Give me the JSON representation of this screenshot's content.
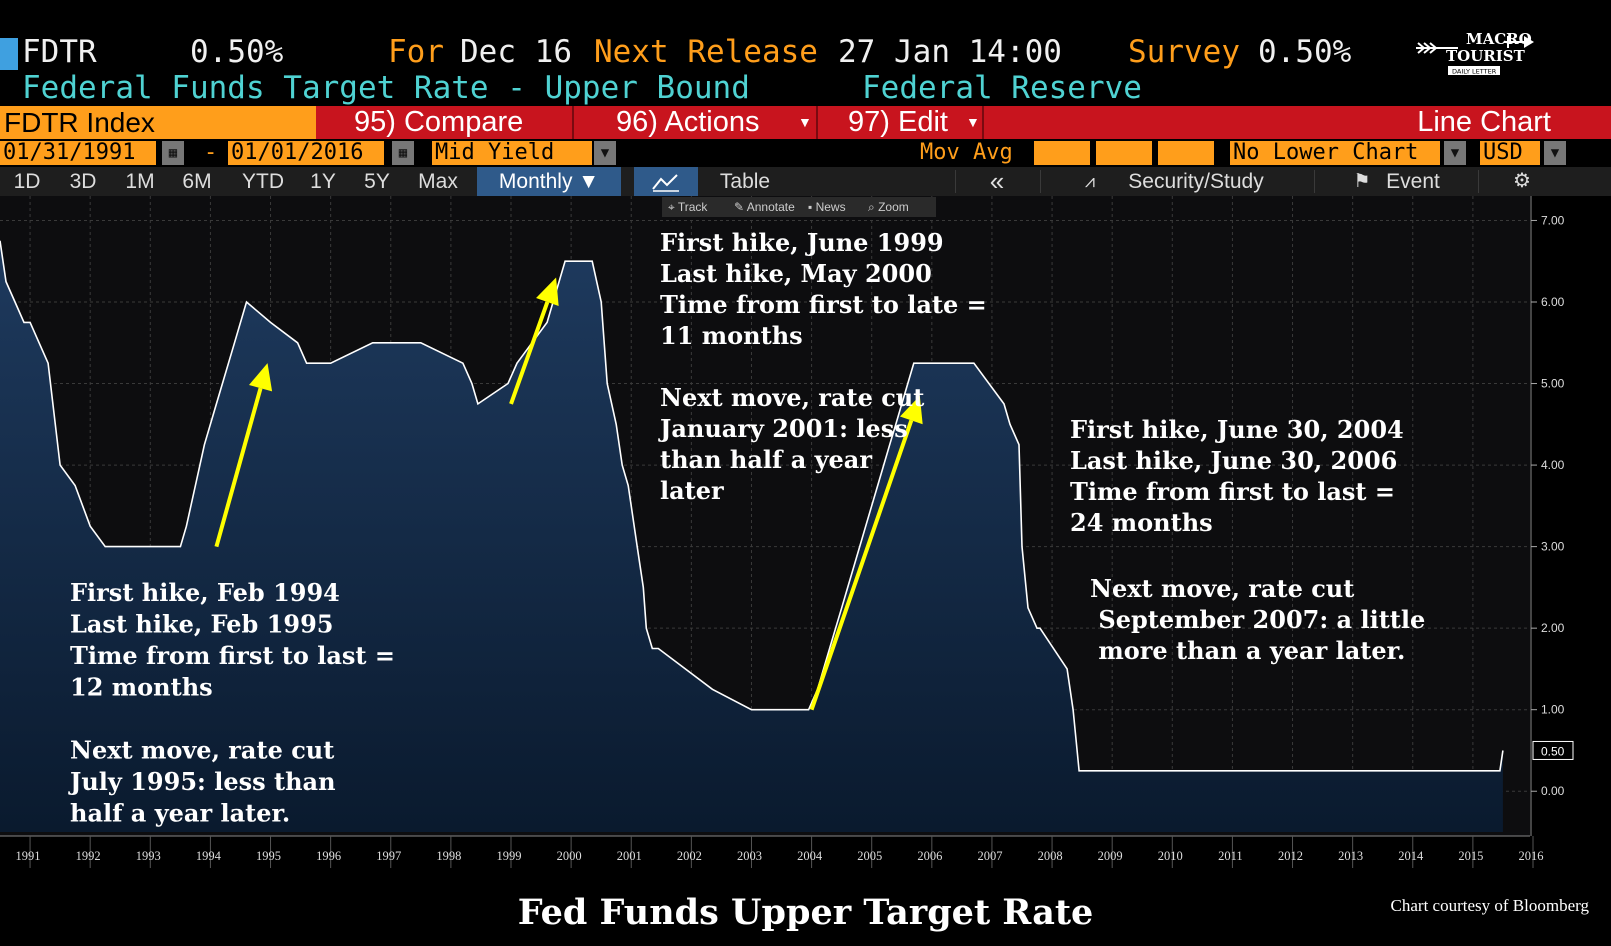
{
  "header": {
    "ticker": "FDTR",
    "value": "0.50%",
    "for_label": "For",
    "for_date": "Dec 16",
    "next_release_label": "Next Release",
    "next_release": "27 Jan 14:00",
    "survey_label": "Survey",
    "survey_value": "0.50%",
    "description": "Federal Funds Target Rate - Upper Bound",
    "source": "Federal Reserve"
  },
  "logo": {
    "line1": "MACRO",
    "line2": "TOURIST",
    "line3": "DAILY LETTER"
  },
  "toolbar": {
    "index": "FDTR Index",
    "compare": "95) Compare",
    "actions": "96) Actions",
    "edit": "97) Edit",
    "chart_type": "Line Chart"
  },
  "datebar": {
    "start": "01/31/1991",
    "dash": "-",
    "end": "01/01/2016",
    "field": "Mid Yield",
    "mov_avg": "Mov Avg",
    "lower_chart": "No Lower Chart",
    "currency": "USD"
  },
  "periods": [
    "1D",
    "3D",
    "1M",
    "6M",
    "YTD",
    "1Y",
    "5Y",
    "Max"
  ],
  "frequency": "Monthly ▼",
  "table_label": "Table",
  "collapse_label": "«",
  "security_study": "Security/Study",
  "event": "Event",
  "tools": {
    "track": "Track",
    "annotate": "Annotate",
    "news": "News",
    "zoom": "Zoom"
  },
  "colors": {
    "accent": "#ff9e1b",
    "red_bar": "#c8141e",
    "fill_top": "#1e3a5e",
    "arrow": "#ffff00"
  },
  "annotations": [
    {
      "lines": [
        "First hike, Feb 1994",
        "Last hike, Feb  1995",
        "Time from first to last =",
        "12 months",
        "",
        "Next move, rate cut",
        "July 1995:  less than",
        "half a year later."
      ]
    },
    {
      "lines": [
        "First hike, June 1999",
        "Last hike, May 2000",
        "Time from first to late =",
        "11 months",
        "",
        "Next move, rate cut",
        "January 2001: less",
        "than half a year",
        "later"
      ]
    },
    {
      "lines": [
        "First hike, June 30, 2004",
        "Last hike, June 30, 2006",
        "Time from first to last =",
        "24 months"
      ]
    },
    {
      "lines": [
        "Next move, rate cut",
        " September 2007: a little",
        "   more than a year later."
      ]
    }
  ],
  "chart_data": {
    "type": "area",
    "title": "Fed Funds Upper Target Rate",
    "credit": "Chart courtesy of Bloomberg",
    "last_value_label": "0.50",
    "ylim": [
      -0.5,
      7.3
    ],
    "yticks": [
      "7.00",
      "6.00",
      "5.00",
      "4.00",
      "3.00",
      "2.00",
      "1.00",
      "0.00"
    ],
    "xticks": [
      "1991",
      "1992",
      "1993",
      "1994",
      "1995",
      "1996",
      "1997",
      "1998",
      "1999",
      "2000",
      "2001",
      "2002",
      "2003",
      "2004",
      "2005",
      "2006",
      "2007",
      "2008",
      "2009",
      "2010",
      "2011",
      "2012",
      "2013",
      "2014",
      "2015",
      "2016"
    ],
    "grid": true,
    "x": [
      1991.0,
      1991.1,
      1991.25,
      1991.4,
      1991.5,
      1991.8,
      1992.0,
      1992.25,
      1992.5,
      1992.75,
      1993.0,
      1993.5,
      1994.0,
      1994.1,
      1994.25,
      1994.4,
      1994.6,
      1994.9,
      1995.1,
      1995.5,
      1995.95,
      1996.1,
      1996.5,
      1997.2,
      1998.0,
      1998.7,
      1998.85,
      1998.95,
      1999.45,
      1999.6,
      1999.85,
      2000.1,
      2000.4,
      2000.55,
      2000.85,
      2001.0,
      2001.05,
      2001.1,
      2001.25,
      2001.35,
      2001.45,
      2001.5,
      2001.6,
      2001.7,
      2001.75,
      2001.85,
      2001.95,
      2002.85,
      2003.5,
      2004.45,
      2004.6,
      2004.7,
      2004.8,
      2004.9,
      2005.0,
      2005.1,
      2005.2,
      2005.3,
      2005.4,
      2005.5,
      2005.6,
      2005.7,
      2005.8,
      2005.9,
      2006.0,
      2006.1,
      2006.2,
      2006.3,
      2006.5,
      2007.2,
      2007.7,
      2007.8,
      2007.95,
      2008.0,
      2008.1,
      2008.25,
      2008.3,
      2008.75,
      2008.85,
      2008.95,
      2015.95,
      2016.0
    ],
    "y": [
      6.75,
      6.25,
      6.0,
      5.75,
      5.75,
      5.25,
      4.0,
      3.75,
      3.25,
      3.0,
      3.0,
      3.0,
      3.0,
      3.25,
      3.75,
      4.25,
      4.75,
      5.5,
      6.0,
      5.75,
      5.5,
      5.25,
      5.25,
      5.5,
      5.5,
      5.25,
      5.0,
      4.75,
      5.0,
      5.25,
      5.5,
      5.75,
      6.5,
      6.5,
      6.5,
      6.0,
      5.5,
      5.0,
      4.5,
      4.0,
      3.75,
      3.5,
      3.0,
      2.5,
      2.0,
      1.75,
      1.75,
      1.25,
      1.0,
      1.0,
      1.25,
      1.5,
      1.75,
      2.0,
      2.25,
      2.5,
      2.75,
      3.0,
      3.25,
      3.5,
      3.75,
      4.0,
      4.25,
      4.5,
      4.75,
      5.0,
      5.25,
      5.25,
      5.25,
      5.25,
      4.75,
      4.5,
      4.25,
      3.0,
      2.25,
      2.0,
      2.0,
      1.5,
      1.0,
      0.25,
      0.25,
      0.5
    ],
    "arrows": [
      {
        "from": [
          1994.6,
          3.0
        ],
        "to": [
          1995.45,
          5.25
        ]
      },
      {
        "from": [
          1999.5,
          4.75
        ],
        "to": [
          2000.25,
          6.3
        ]
      },
      {
        "from": [
          2004.5,
          1.0
        ],
        "to": [
          2006.3,
          4.85
        ]
      }
    ]
  }
}
